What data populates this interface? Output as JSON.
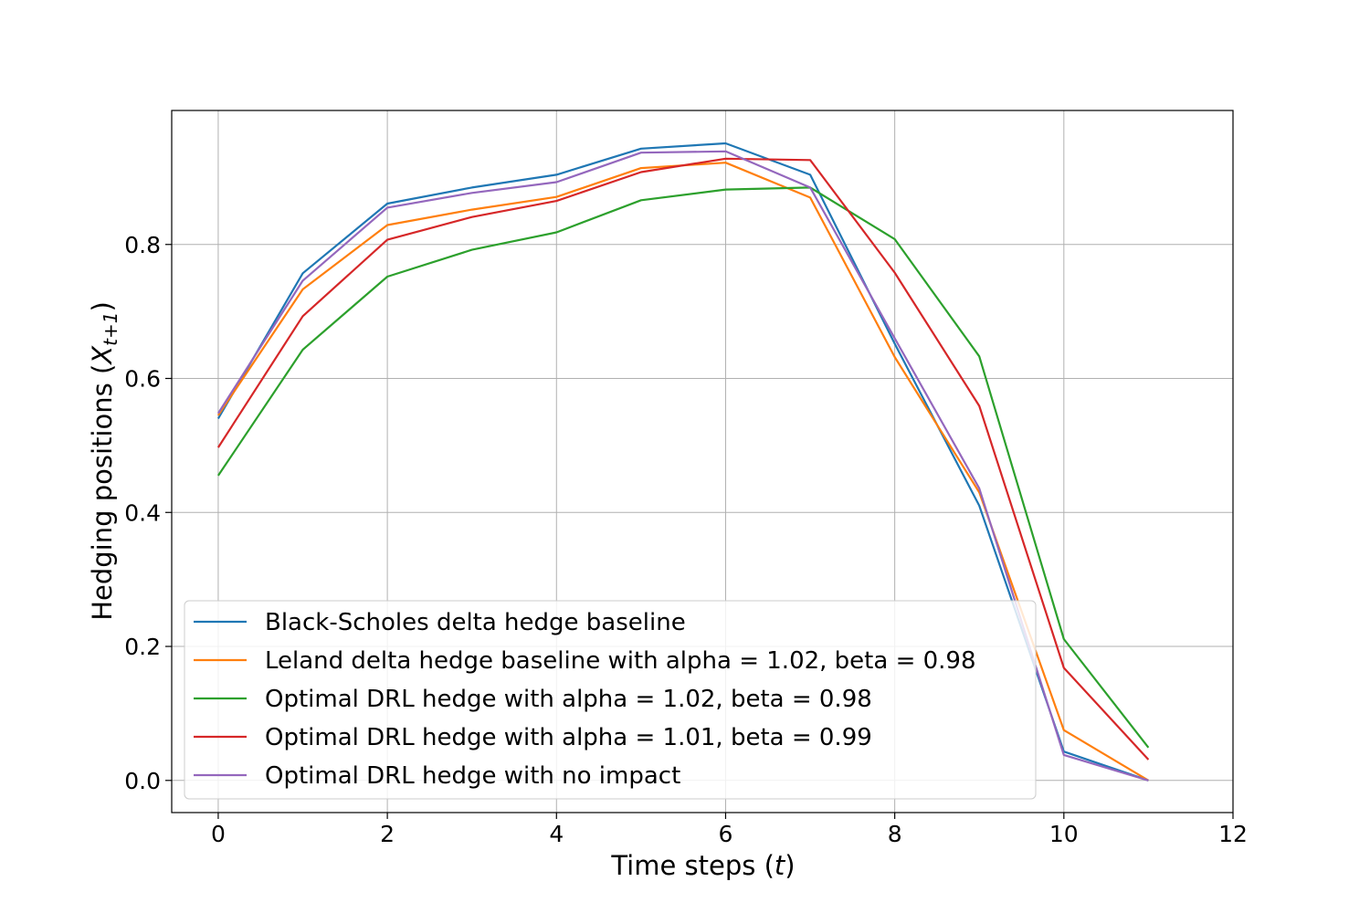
{
  "chart_data": {
    "type": "line",
    "title": "",
    "xlabel": "Time steps (",
    "xlabel_var": "t",
    "xlabel_end": ")",
    "ylabel": "Hedging positions (",
    "ylabel_var": "X",
    "ylabel_sub": "t+1",
    "ylabel_end": ")",
    "xlim": [
      -0.55,
      12
    ],
    "ylim": [
      -0.048,
      1.0
    ],
    "x_ticks": [
      0,
      2,
      4,
      6,
      8,
      10,
      12
    ],
    "x_tick_labels": [
      "0",
      "2",
      "4",
      "6",
      "8",
      "10",
      "12"
    ],
    "y_ticks": [
      0.0,
      0.2,
      0.4,
      0.6,
      0.8
    ],
    "y_tick_labels": [
      "0.0",
      "0.2",
      "0.4",
      "0.6",
      "0.8"
    ],
    "grid": true,
    "legend_position": "lower-left",
    "x": [
      0,
      1,
      2,
      3,
      4,
      5,
      6,
      7,
      8,
      9,
      10,
      11
    ],
    "series": [
      {
        "name": "Black-Scholes delta hedge baseline",
        "color": "#1f77b4",
        "values": [
          0.54,
          0.757,
          0.861,
          0.885,
          0.904,
          0.943,
          0.951,
          0.904,
          0.652,
          0.41,
          0.043,
          0.0
        ]
      },
      {
        "name": "Leland delta hedge baseline with alpha = 1.02, beta = 0.98",
        "color": "#ff7f0e",
        "values": [
          0.545,
          0.733,
          0.829,
          0.852,
          0.871,
          0.914,
          0.922,
          0.87,
          0.632,
          0.43,
          0.075,
          0.0
        ]
      },
      {
        "name": "Optimal DRL hedge with alpha = 1.02, beta = 0.98",
        "color": "#2ca02c",
        "values": [
          0.455,
          0.643,
          0.752,
          0.792,
          0.818,
          0.866,
          0.882,
          0.885,
          0.808,
          0.633,
          0.211,
          0.049
        ]
      },
      {
        "name": "Optimal DRL hedge with alpha = 1.01, beta = 0.99",
        "color": "#d62728",
        "values": [
          0.497,
          0.693,
          0.807,
          0.841,
          0.865,
          0.908,
          0.928,
          0.926,
          0.758,
          0.559,
          0.168,
          0.031
        ]
      },
      {
        "name": "Optimal DRL hedge with no impact",
        "color": "#9467bd",
        "values": [
          0.548,
          0.746,
          0.855,
          0.877,
          0.893,
          0.937,
          0.939,
          0.885,
          0.66,
          0.436,
          0.038,
          0.0
        ]
      }
    ]
  }
}
